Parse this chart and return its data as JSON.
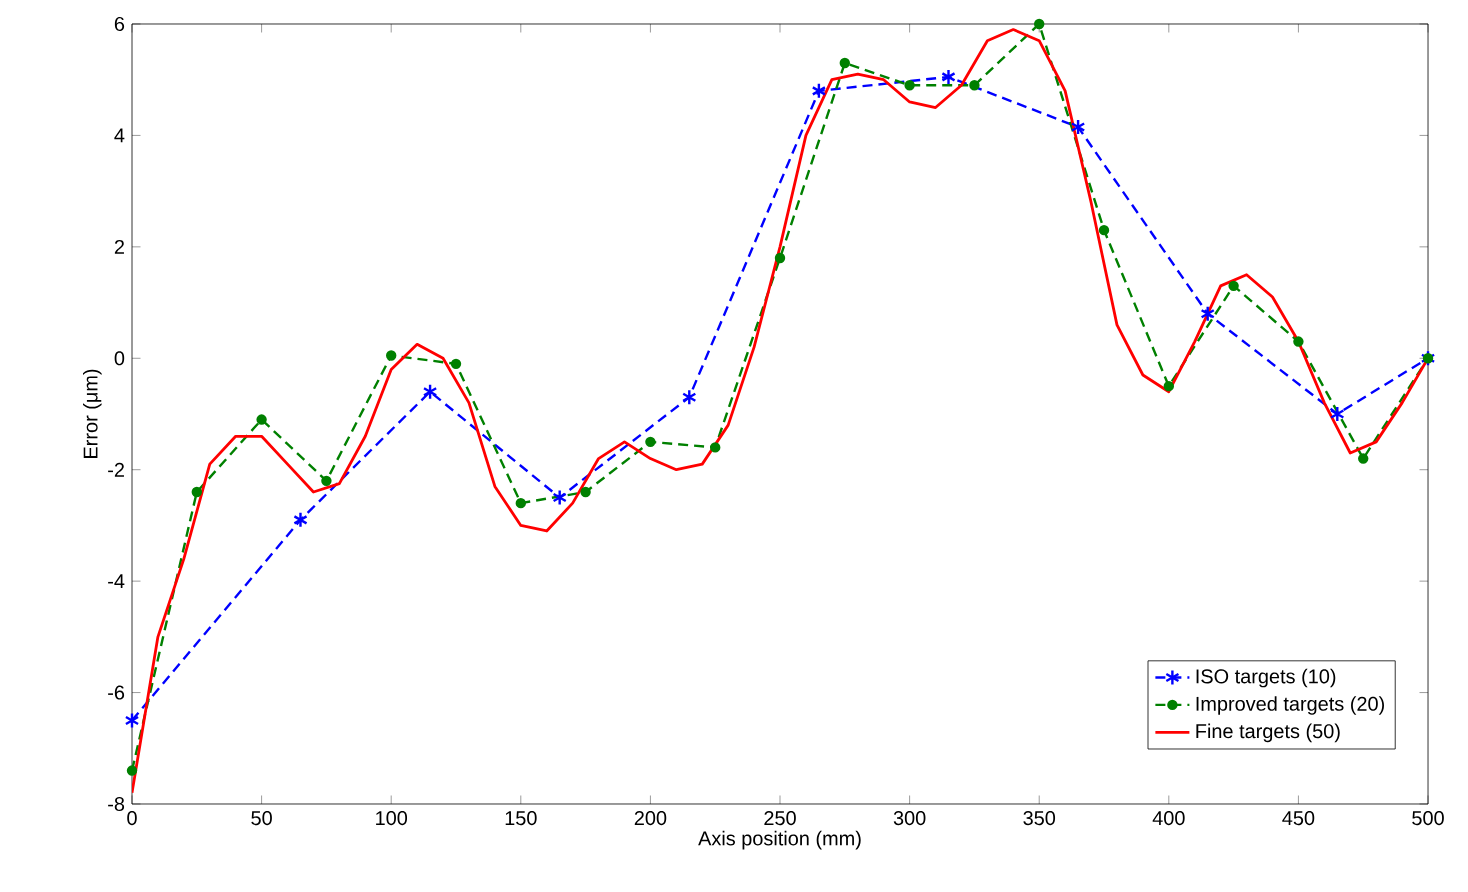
{
  "chart_data": {
    "type": "line",
    "xlabel": "Axis position (mm)",
    "ylabel": "Error (μm)",
    "xlim": [
      0,
      500
    ],
    "ylim": [
      -8,
      6
    ],
    "xticks": [
      0,
      50,
      100,
      150,
      200,
      250,
      300,
      350,
      400,
      450,
      500
    ],
    "yticks": [
      -8,
      -6,
      -4,
      -2,
      0,
      2,
      4,
      6
    ],
    "grid": false,
    "legend": "bottom right",
    "series": [
      {
        "name": "ISO targets (10)",
        "color": "#0000ff",
        "marker": "cross",
        "line_style": "dashed",
        "x": [
          0,
          65,
          115,
          165,
          215,
          265,
          315,
          365,
          415,
          465,
          500
        ],
        "values": [
          -6.5,
          -2.9,
          -0.6,
          -2.5,
          -0.7,
          4.8,
          5.05,
          4.15,
          0.8,
          -1.0,
          0.0
        ]
      },
      {
        "name": "Improved targets (20)",
        "color": "#008000",
        "marker": "circle",
        "line_style": "dashed",
        "x": [
          0,
          25,
          50,
          75,
          100,
          125,
          150,
          175,
          200,
          225,
          250,
          275,
          300,
          325,
          350,
          375,
          400,
          425,
          450,
          475,
          500
        ],
        "values": [
          -7.4,
          -2.4,
          -1.1,
          -2.2,
          0.05,
          -0.1,
          -2.6,
          -2.4,
          -1.5,
          -1.6,
          1.8,
          5.3,
          4.9,
          4.9,
          6.0,
          2.3,
          -0.5,
          1.3,
          0.3,
          -1.8,
          0.0
        ]
      },
      {
        "name": "Fine targets (50)",
        "color": "#ff0000",
        "marker": "none",
        "line_style": "solid",
        "x": [
          0,
          10,
          20,
          30,
          40,
          50,
          60,
          70,
          80,
          90,
          100,
          110,
          120,
          130,
          140,
          150,
          160,
          170,
          180,
          190,
          200,
          210,
          220,
          230,
          240,
          250,
          260,
          270,
          280,
          290,
          300,
          310,
          320,
          330,
          340,
          350,
          360,
          370,
          380,
          390,
          400,
          410,
          420,
          430,
          440,
          450,
          460,
          470,
          480,
          490,
          500
        ],
        "values": [
          -7.8,
          -5.0,
          -3.6,
          -1.9,
          -1.4,
          -1.4,
          -1.9,
          -2.4,
          -2.25,
          -1.4,
          -0.2,
          0.25,
          0.0,
          -0.8,
          -2.3,
          -3.0,
          -3.1,
          -2.6,
          -1.8,
          -1.5,
          -1.8,
          -2.0,
          -1.9,
          -1.2,
          0.2,
          2.0,
          4.0,
          5.0,
          5.1,
          5.0,
          4.6,
          4.5,
          4.9,
          5.7,
          5.9,
          5.7,
          4.8,
          2.8,
          0.6,
          -0.3,
          -0.6,
          0.3,
          1.3,
          1.5,
          1.1,
          0.3,
          -0.8,
          -1.7,
          -1.5,
          -0.8,
          0.0
        ]
      }
    ]
  }
}
